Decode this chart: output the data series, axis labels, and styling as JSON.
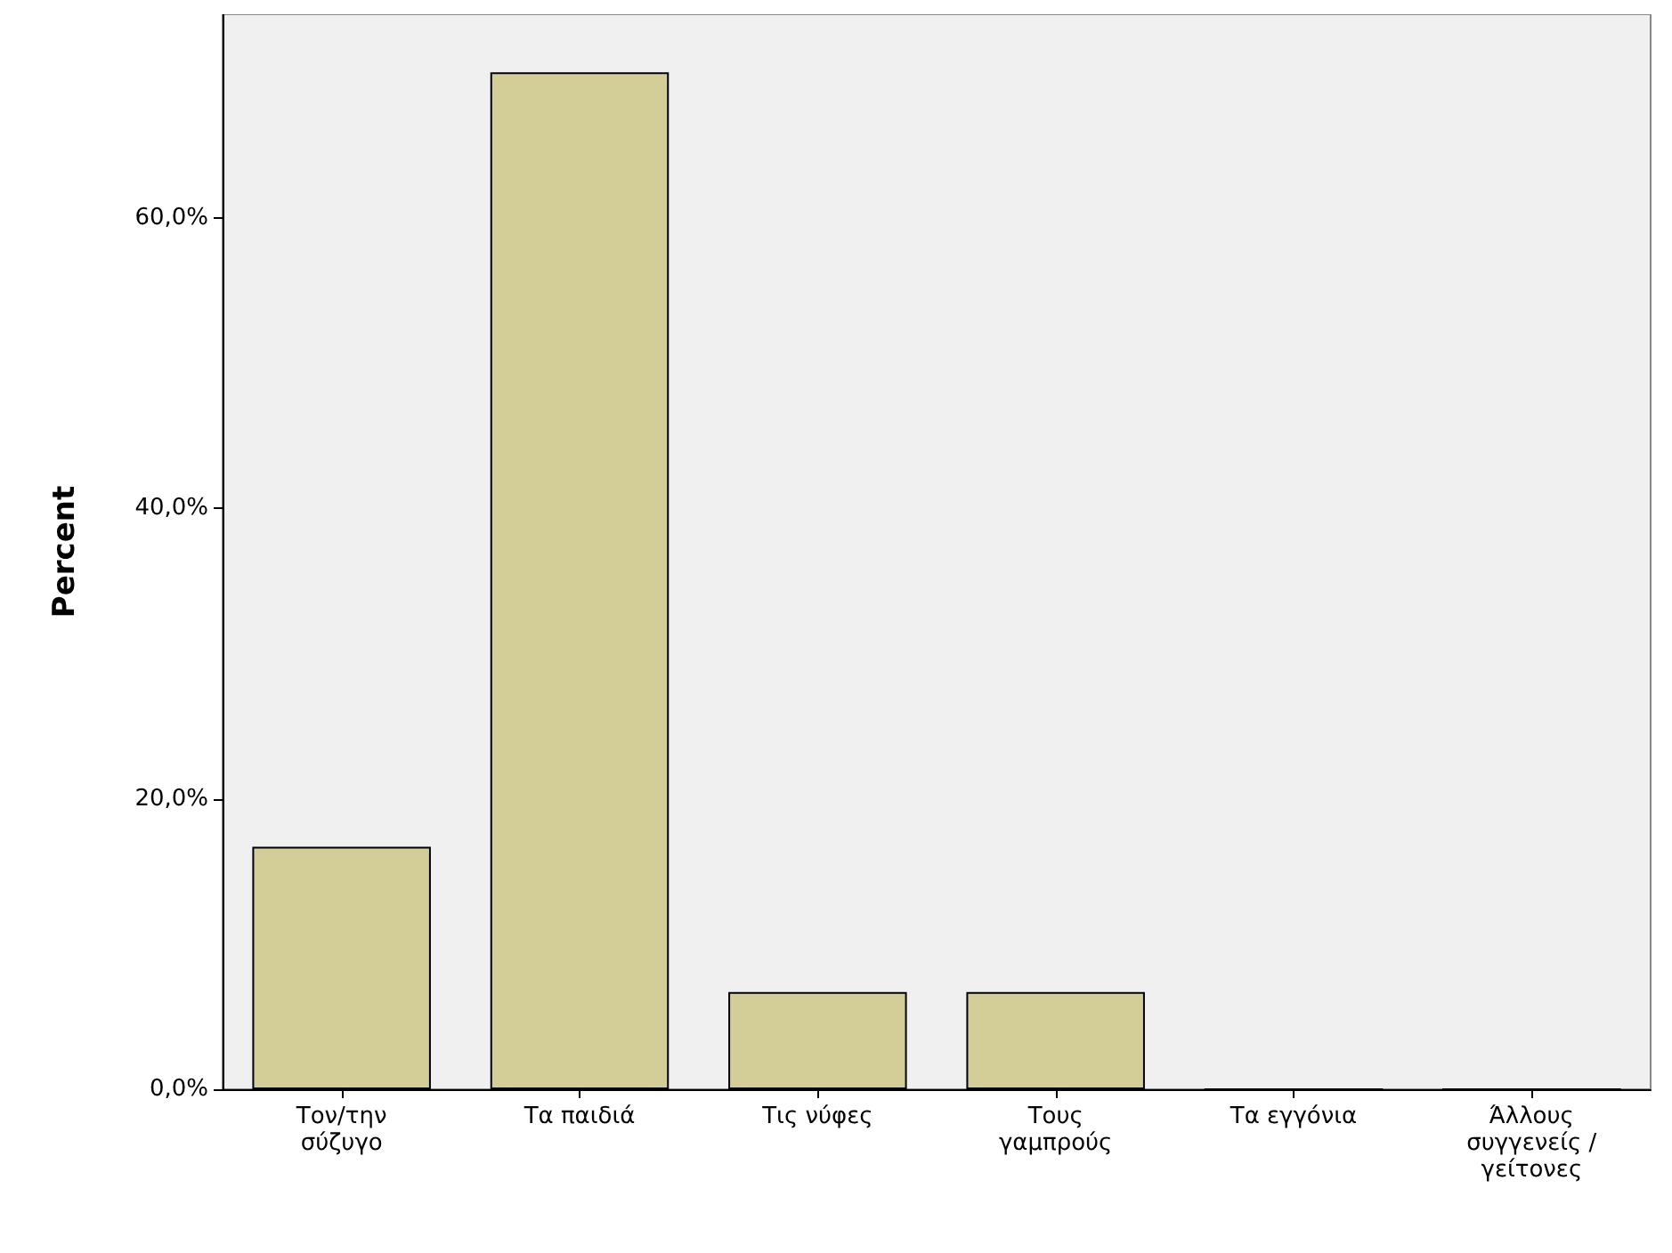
{
  "chart_data": {
    "type": "bar",
    "ylabel": "Percent",
    "categories": [
      "Τον/την\nσύζυγο",
      "Τα παιδιά",
      "Τις νύφες",
      "Τους\nγαμπρούς",
      "Τα εγγόνια",
      "Άλλους\nσυγγενείς /\nγείτονες"
    ],
    "values": [
      16.7,
      70.0,
      6.7,
      6.7,
      0,
      0
    ],
    "color": "#d3ce97",
    "ylim": [
      0,
      74
    ],
    "yticks": [
      {
        "value": 0,
        "label": "0,0%"
      },
      {
        "value": 20,
        "label": "20,0%"
      },
      {
        "value": 40,
        "label": "40,0%"
      },
      {
        "value": 60,
        "label": "60,0%"
      }
    ],
    "grid": false
  }
}
